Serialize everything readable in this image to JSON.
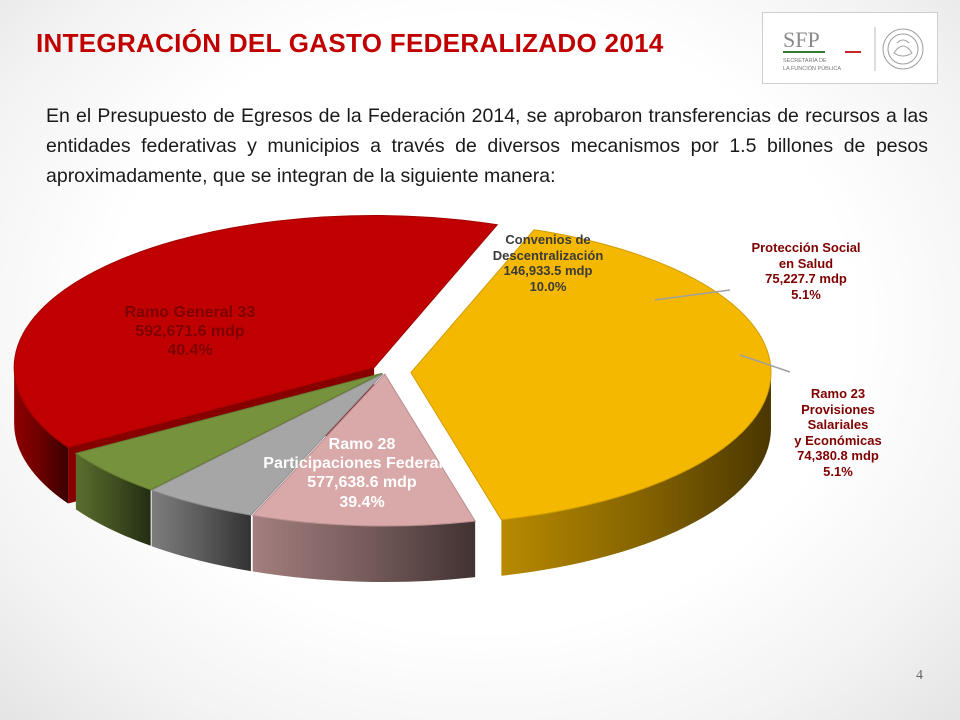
{
  "slide": {
    "title": "INTEGRACIÓN DEL GASTO FEDERALIZADO 2014",
    "intro": "En el Presupuesto de Egresos de la Federación 2014, se aprobaron transferencias de recursos a las entidades federativas y municipios a través de diversos mecanismos por 1.5 billones de pesos aproximadamente, que se integran de la siguiente manera:",
    "page_number": "4",
    "logo": {
      "sfp": "SFP",
      "line1": "SECRETARÍA DE",
      "line2": "LA FUNCIÓN PÚBLICA"
    }
  },
  "chart_data": {
    "type": "pie",
    "style": "3d-exploded",
    "unit": "mdp",
    "slices": [
      {
        "name_lines": [
          "Ramo General 33"
        ],
        "value": 592671.6,
        "value_text": "592,671.6  mdp",
        "percent": 40.4,
        "percent_text": "40.4%",
        "color": "#f5b800",
        "label_color": "#7f0000"
      },
      {
        "name_lines": [
          "Convenios de",
          "Descentralización"
        ],
        "value": 146933.5,
        "value_text": "146,933.5  mdp",
        "percent": 10.0,
        "percent_text": "10.0%",
        "color": "#d9a8a8",
        "label_color": "#3a3a3a"
      },
      {
        "name_lines": [
          "Protección Social",
          "en Salud"
        ],
        "value": 75227.7,
        "value_text": "75,227.7  mdp",
        "percent": 5.1,
        "percent_text": "5.1%",
        "color": "#a6a6a6",
        "label_color": "#7f0000"
      },
      {
        "name_lines": [
          "Ramo 23",
          "Provisiones",
          "Salariales",
          "y Económicas"
        ],
        "value": 74380.8,
        "value_text": "74,380.8  mdp",
        "percent": 5.1,
        "percent_text": "5.1%",
        "color": "#76923c",
        "label_color": "#7f0000"
      },
      {
        "name_lines": [
          "Ramo 28",
          "Participaciones Federales"
        ],
        "value": 577638.6,
        "value_text": "577,638.6  mdp",
        "percent": 39.4,
        "percent_text": "39.4%",
        "color": "#c00000",
        "label_color": "#ffffff"
      }
    ]
  }
}
